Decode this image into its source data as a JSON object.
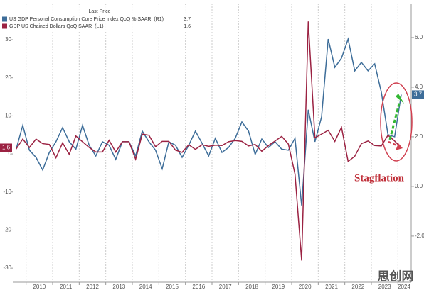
{
  "chart_data": {
    "type": "line",
    "legend_header": "Last Price",
    "categories": [
      null,
      null,
      "2010",
      null,
      null,
      null,
      "2011",
      null,
      null,
      null,
      "2012",
      null,
      null,
      null,
      "2013",
      null,
      null,
      null,
      "2014",
      null,
      null,
      null,
      "2015",
      null,
      null,
      null,
      "2016",
      null,
      null,
      null,
      "2017",
      null,
      null,
      null,
      "2018",
      null,
      null,
      null,
      "2019",
      null,
      null,
      null,
      "2020",
      null,
      null,
      null,
      "2021",
      null,
      null,
      null,
      "2022",
      null,
      null,
      null,
      "2023",
      null,
      null,
      null,
      "2024"
    ],
    "series": [
      {
        "name": "US GDP Personal Consumption Core Price Index QoQ % SAAR  (R1)",
        "color": "#3d6d99",
        "axis": "y2",
        "values": [
          1.5,
          2.46,
          1.46,
          1.17,
          0.66,
          1.37,
          1.8,
          2.37,
          1.8,
          1.5,
          2.46,
          1.66,
          1.23,
          1.8,
          1.66,
          1.09,
          1.8,
          1.8,
          1.23,
          2.23,
          1.8,
          1.46,
          0.71,
          1.8,
          1.66,
          1.17,
          1.66,
          2.23,
          1.74,
          1.23,
          1.94,
          1.37,
          1.57,
          1.94,
          2.6,
          2.23,
          1.29,
          1.91,
          1.57,
          1.8,
          1.5,
          1.46,
          1.94,
          -0.77,
          3.09,
          1.8,
          2.8,
          5.94,
          4.8,
          5.17,
          5.94,
          4.66,
          5.0,
          4.66,
          4.94,
          3.8,
          2.09,
          2.0,
          3.7
        ]
      },
      {
        "name": "GDP US Chained Dollars QoQ SAAR  (L1)",
        "color": "#9b2242",
        "values": [
          1.3,
          3.9,
          1.7,
          3.9,
          2.7,
          2.5,
          -1.0,
          2.9,
          -0.1,
          4.7,
          3.2,
          1.7,
          0.5,
          0.5,
          3.6,
          0.5,
          3.2,
          3.2,
          -1.4,
          5.2,
          4.9,
          1.9,
          3.3,
          3.3,
          1.0,
          0.4,
          2.4,
          1.2,
          2.4,
          2.0,
          2.3,
          2.2,
          3.2,
          3.5,
          3.3,
          2.1,
          2.5,
          0.7,
          2.2,
          3.4,
          4.6,
          2.6,
          -5.3,
          -28.0,
          34.8,
          4.2,
          5.2,
          6.2,
          3.3,
          7.0,
          -2.0,
          -0.6,
          2.7,
          3.4,
          2.2,
          2.1,
          4.9,
          3.4,
          1.6
        ]
      }
    ],
    "ylim": [
      -33.7,
      39.5
    ],
    "yticks": [
      -30,
      -20,
      -10,
      0,
      10,
      20,
      30
    ],
    "y2lim": [
      -3.86,
      7.37
    ],
    "y2ticks": [
      {
        "value": -2,
        "label": "-2.0"
      },
      {
        "value": 0,
        "label": "0.0"
      },
      {
        "value": 2,
        "label": "2.0"
      },
      {
        "value": 4,
        "label": "4.0"
      },
      {
        "value": 6,
        "label": "6.0"
      }
    ],
    "annotation": "Stagflation",
    "watermark": "思创网"
  }
}
